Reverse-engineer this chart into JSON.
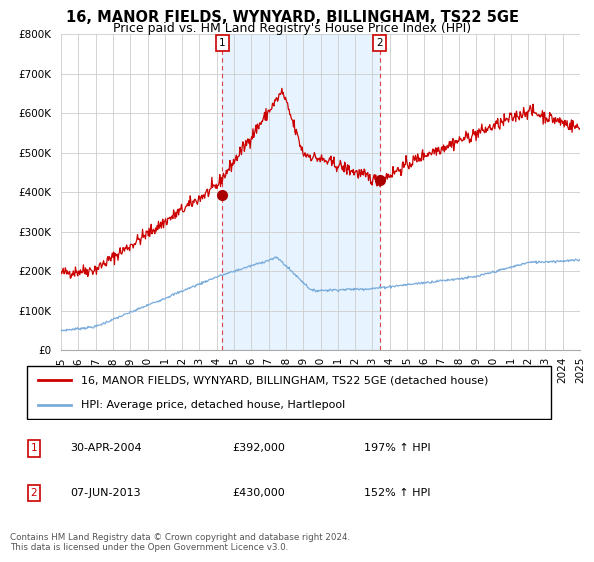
{
  "title": "16, MANOR FIELDS, WYNYARD, BILLINGHAM, TS22 5GE",
  "subtitle": "Price paid vs. HM Land Registry's House Price Index (HPI)",
  "ylim": [
    0,
    800000
  ],
  "yticks": [
    0,
    100000,
    200000,
    300000,
    400000,
    500000,
    600000,
    700000,
    800000
  ],
  "ytick_labels": [
    "£0",
    "£100K",
    "£200K",
    "£300K",
    "£400K",
    "£500K",
    "£600K",
    "£700K",
    "£800K"
  ],
  "x_start_year": 1995,
  "x_end_year": 2025,
  "sale1_date": 2004.33,
  "sale1_price": 392000,
  "sale1_label": "1",
  "sale1_text": "30-APR-2004",
  "sale1_price_text": "£392,000",
  "sale1_hpi_text": "197% ↑ HPI",
  "sale2_date": 2013.43,
  "sale2_price": 430000,
  "sale2_label": "2",
  "sale2_text": "07-JUN-2013",
  "sale2_price_text": "£430,000",
  "sale2_hpi_text": "152% ↑ HPI",
  "hpi_line_color": "#7aacdb",
  "hpi_fill_color": "#ddeeff",
  "price_line_color": "#cc0000",
  "sale_marker_color": "#aa0000",
  "dashed_line_color": "#dd4444",
  "legend_label_property": "16, MANOR FIELDS, WYNYARD, BILLINGHAM, TS22 5GE (detached house)",
  "legend_label_hpi": "HPI: Average price, detached house, Hartlepool",
  "footer_text": "Contains HM Land Registry data © Crown copyright and database right 2024.\nThis data is licensed under the Open Government Licence v3.0.",
  "background_color": "#ffffff",
  "grid_color": "#cccccc",
  "title_fontsize": 10.5,
  "subtitle_fontsize": 9,
  "tick_fontsize": 7.5,
  "legend_fontsize": 8
}
